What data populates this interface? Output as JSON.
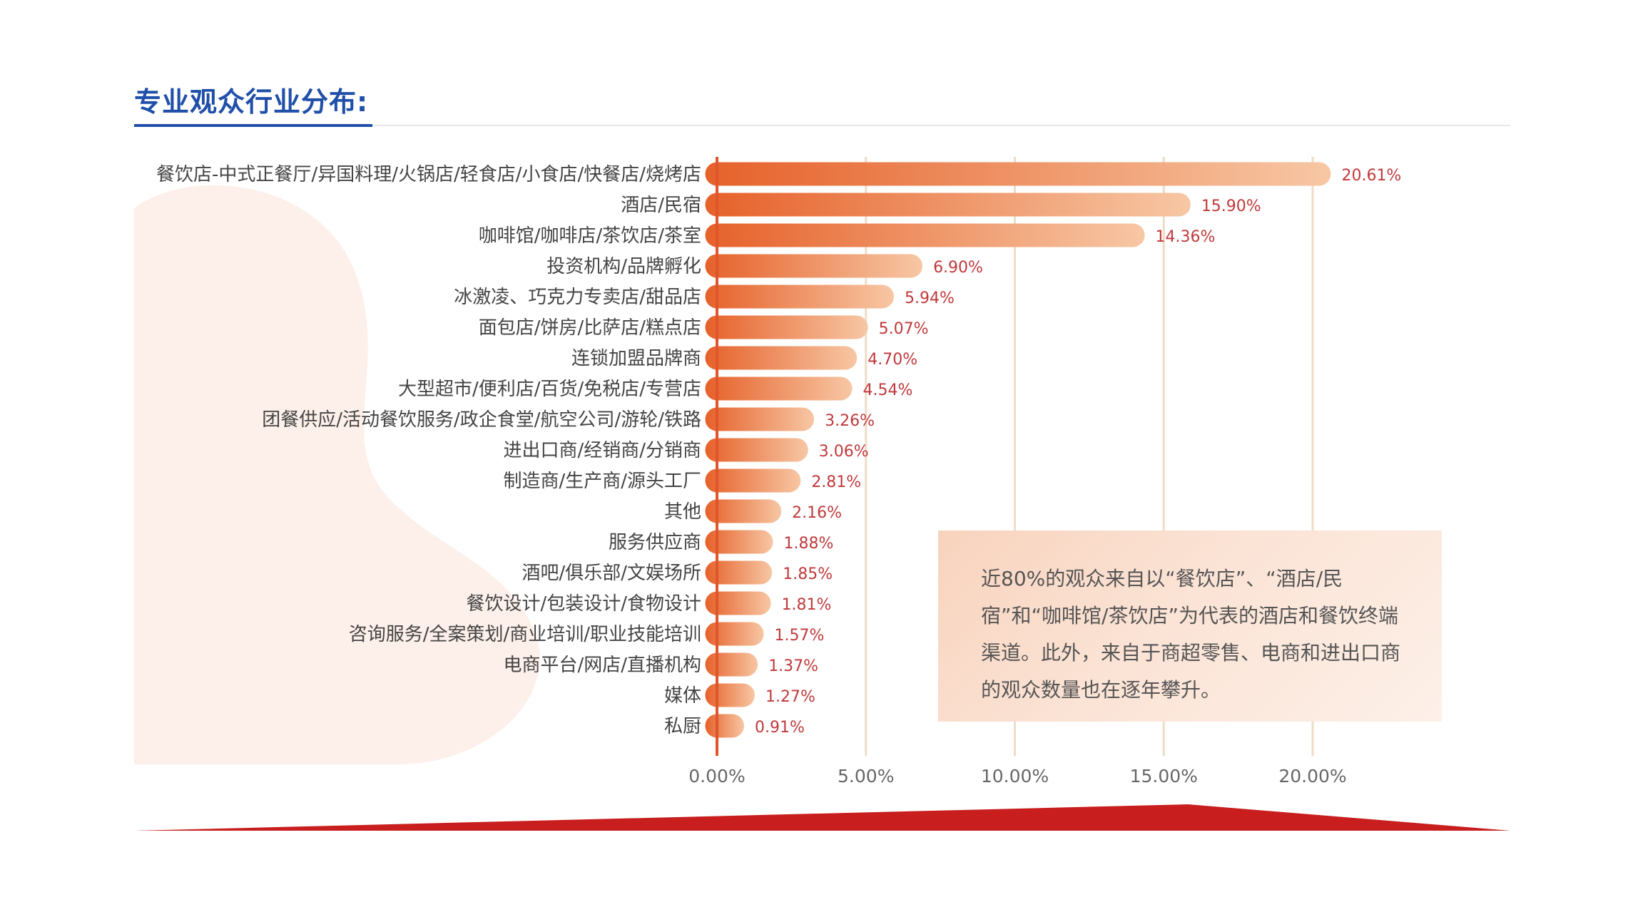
{
  "page": {
    "title": "专业观众行业分布:"
  },
  "note": {
    "text": "近80%的观众来自以“餐饮店”、“酒店/民宿”和“咖啡馆/茶饮店”为代表的酒店和餐饮终端渠道。此外，来自于商超零售、电商和进出口商的观众数量也在逐年攀升。"
  },
  "colors": {
    "bar_start": "#e6612a",
    "bar_end": "#f7c7a4",
    "value_label": "#c0393b",
    "axis": "#e0552b",
    "grid": "#efdcc7",
    "title": "#1f4fa8",
    "band": "#c81e1e"
  },
  "chart_data": {
    "type": "bar",
    "orientation": "horizontal",
    "categories": [
      "餐饮店-中式正餐厅/异国料理/火锅店/轻食店/小食店/快餐店/烧烤店",
      "酒店/民宿",
      "咖啡馆/咖啡店/茶饮店/茶室",
      "投资机构/品牌孵化",
      "冰激凌、巧克力专卖店/甜品店",
      "面包店/饼房/比萨店/糕点店",
      "连锁加盟品牌商",
      "大型超市/便利店/百货/免税店/专营店",
      "团餐供应/活动餐饮服务/政企食堂/航空公司/游轮/铁路",
      "进出口商/经销商/分销商",
      "制造商/生产商/源头工厂",
      "其他",
      "服务供应商",
      "酒吧/俱乐部/文娱场所",
      "餐饮设计/包装设计/食物设计",
      "咨询服务/全案策划/商业培训/职业技能培训",
      "电商平台/网店/直播机构",
      "媒体",
      "私厨"
    ],
    "values": [
      20.61,
      15.9,
      14.36,
      6.9,
      5.94,
      5.07,
      4.7,
      4.54,
      3.26,
      3.06,
      2.81,
      2.16,
      1.88,
      1.85,
      1.81,
      1.57,
      1.37,
      1.27,
      0.91
    ],
    "value_labels": [
      "20.61%",
      "15.90%",
      "14.36%",
      "6.90%",
      "5.94%",
      "5.07%",
      "4.70%",
      "4.54%",
      "3.26%",
      "3.06%",
      "2.81%",
      "2.16%",
      "1.88%",
      "1.85%",
      "1.81%",
      "1.57%",
      "1.37%",
      "1.27%",
      "0.91%"
    ],
    "x_ticks": [
      0,
      5,
      10,
      15,
      20
    ],
    "x_tick_labels": [
      "0.00%",
      "5.00%",
      "10.00%",
      "15.00%",
      "20.00%"
    ],
    "xlim": [
      0,
      20
    ],
    "grid": true,
    "title": "",
    "xlabel": "",
    "ylabel": ""
  }
}
